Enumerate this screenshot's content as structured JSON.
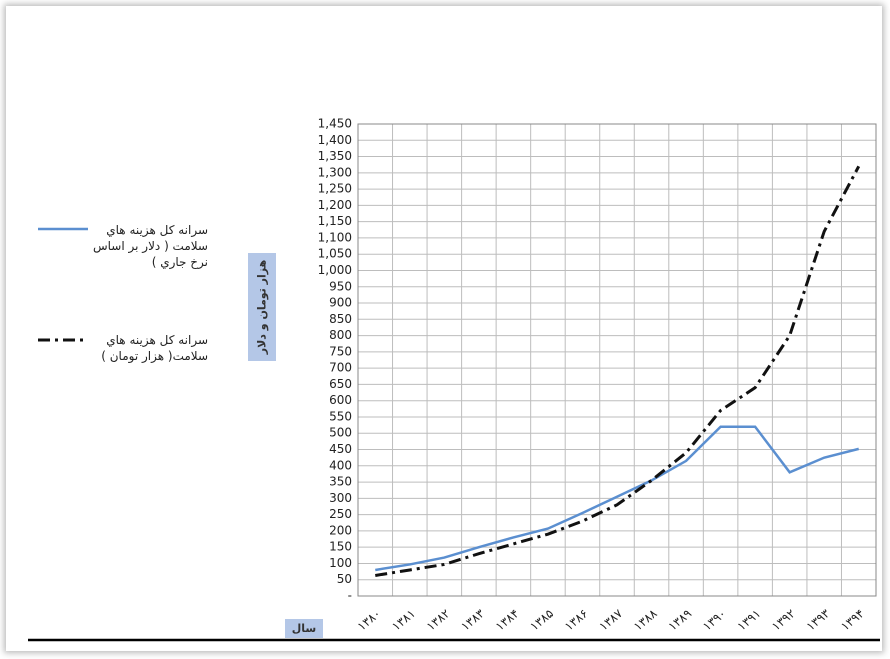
{
  "chart_data": {
    "type": "line",
    "y_label": "هزار تومان و دلار",
    "x_label": "سال",
    "categories": [
      "۱۳۸۰",
      "۱۳۸۱",
      "۱۳۸۲",
      "۱۳۸۳",
      "۱۳۸۴",
      "۱۳۸۵",
      "۱۳۸۶",
      "۱۳۸۷",
      "۱۳۸۸",
      "۱۳۸۹",
      "۱۳۹۰",
      "۱۳۹۱",
      "۱۳۹۲",
      "۱۳۹۳",
      "۱۳۹۴"
    ],
    "series": [
      {
        "name": "سرانه کل هزینه هاي سلامت ( دلار بر اساس نرخ جاري )",
        "color": "#5b8fd0",
        "line_style": "solid",
        "values": [
          80,
          97,
          118,
          150,
          180,
          207,
          255,
          305,
          355,
          415,
          520,
          520,
          380,
          425,
          452
        ]
      },
      {
        "name": "سرانه کل هزینه هاي سلامت( هزار تومان )",
        "color": "#111111",
        "line_style": "dashed",
        "values": [
          63,
          80,
          97,
          130,
          160,
          190,
          230,
          280,
          355,
          440,
          570,
          640,
          800,
          1120,
          1320
        ]
      }
    ],
    "ylim": [
      0,
      1450
    ],
    "yticks": [
      {
        "value": 0,
        "label": "-"
      },
      50,
      100,
      150,
      200,
      250,
      300,
      350,
      400,
      450,
      500,
      550,
      600,
      650,
      700,
      750,
      800,
      850,
      900,
      950,
      {
        "value": 1000,
        "label": "1,000"
      },
      {
        "value": 1050,
        "label": "1,050"
      },
      {
        "value": 1100,
        "label": "1,100"
      },
      {
        "value": 1150,
        "label": "1,150"
      },
      {
        "value": 1200,
        "label": "1,200"
      },
      {
        "value": 1250,
        "label": "1,250"
      },
      {
        "value": 1300,
        "label": "1,300"
      },
      {
        "value": 1350,
        "label": "1,350"
      },
      {
        "value": 1400,
        "label": "1,400"
      },
      {
        "value": 1450,
        "label": "1,450"
      }
    ],
    "grid": true
  }
}
